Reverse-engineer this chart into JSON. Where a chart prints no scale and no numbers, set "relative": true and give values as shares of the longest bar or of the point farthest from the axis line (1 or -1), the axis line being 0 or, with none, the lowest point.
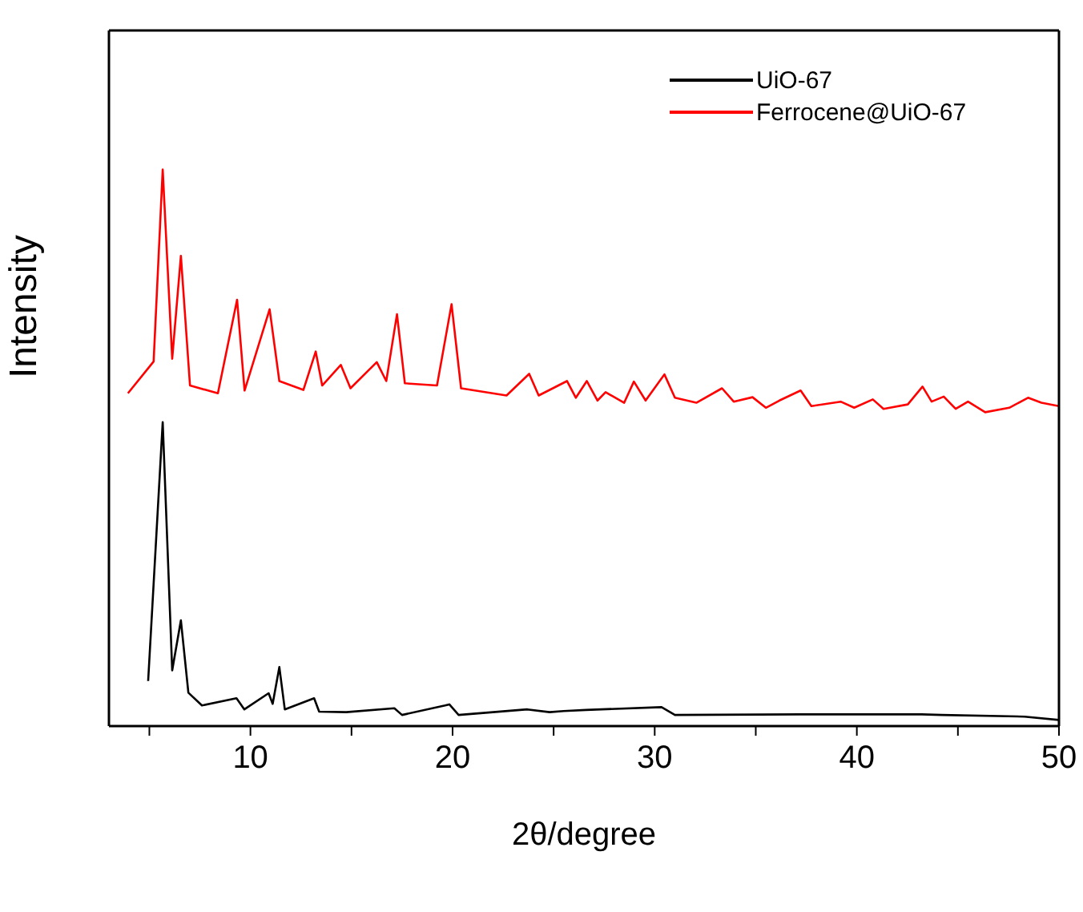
{
  "chart_data": {
    "type": "line",
    "relative": true,
    "xlabel": "2θ/degree",
    "ylabel": "Intensity",
    "xlim": [
      3,
      50
    ],
    "xticks": [
      {
        "value": 5,
        "label": null
      },
      10,
      {
        "value": 15,
        "label": null
      },
      20,
      {
        "value": 25,
        "label": null
      },
      30,
      {
        "value": 35,
        "label": null
      },
      40,
      {
        "value": 45,
        "label": null
      },
      50
    ],
    "legend": "top right",
    "grid": false,
    "marker": "none",
    "line_style": "solid",
    "series": [
      {
        "name": "UiO-67",
        "color": "#000000",
        "x": [
          4.94,
          5.66,
          6.13,
          6.56,
          6.93,
          7.6,
          9.31,
          9.7,
          10.9,
          11.1,
          11.43,
          11.7,
          13.15,
          13.4,
          14.74,
          17.12,
          17.5,
          19.63,
          19.84,
          20.3,
          23.7,
          24.8,
          25.5,
          26.6,
          30.34,
          31.0,
          37.2,
          43.2,
          44.2,
          48.3,
          50.0
        ],
        "values": [
          0.081,
          0.546,
          0.1,
          0.19,
          0.06,
          0.037,
          0.05,
          0.03,
          0.059,
          0.04,
          0.106,
          0.03,
          0.05,
          0.026,
          0.025,
          0.032,
          0.02,
          0.037,
          0.039,
          0.02,
          0.03,
          0.025,
          0.027,
          0.029,
          0.034,
          0.02,
          0.021,
          0.021,
          0.02,
          0.017,
          0.011
        ]
      },
      {
        "name": "Ferrocene@UiO-67",
        "color": "#ff0000",
        "x": [
          3.94,
          5.21,
          5.66,
          6.13,
          6.56,
          7.01,
          8.39,
          9.34,
          9.71,
          10.95,
          11.43,
          12.62,
          13.23,
          13.55,
          14.47,
          14.95,
          16.25,
          16.72,
          17.25,
          17.64,
          19.23,
          19.95,
          20.42,
          22.67,
          23.79,
          24.26,
          25.66,
          26.1,
          26.64,
          27.17,
          27.57,
          28.49,
          28.97,
          29.55,
          30.48,
          31.0,
          32.06,
          33.33,
          33.91,
          34.84,
          35.5,
          36.17,
          37.22,
          37.75,
          39.2,
          39.87,
          40.79,
          41.32,
          42.52,
          43.25,
          43.7,
          44.3,
          44.89,
          45.5,
          46.35,
          47.54,
          48.47,
          49.13,
          50.0
        ],
        "values": [
          0.598,
          0.655,
          1,
          0.66,
          0.845,
          0.612,
          0.598,
          0.766,
          0.603,
          0.749,
          0.62,
          0.604,
          0.673,
          0.612,
          0.649,
          0.607,
          0.654,
          0.62,
          0.74,
          0.616,
          0.612,
          0.758,
          0.607,
          0.594,
          0.633,
          0.594,
          0.62,
          0.59,
          0.62,
          0.585,
          0.6,
          0.581,
          0.619,
          0.585,
          0.632,
          0.59,
          0.581,
          0.607,
          0.583,
          0.591,
          0.572,
          0.585,
          0.603,
          0.575,
          0.583,
          0.572,
          0.587,
          0.57,
          0.578,
          0.61,
          0.583,
          0.592,
          0.57,
          0.583,
          0.564,
          0.572,
          0.59,
          0.581,
          0.575
        ]
      }
    ]
  }
}
